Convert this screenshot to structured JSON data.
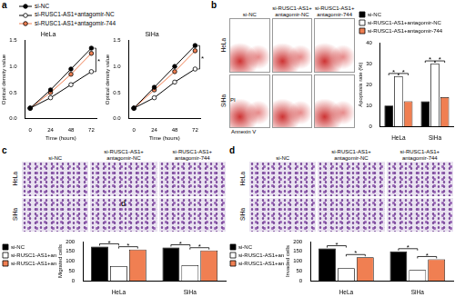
{
  "chart_data": [
    {
      "type": "line",
      "title": "HeLa",
      "x_label": "Time (hours)",
      "y_label": "Optical density value",
      "x": [
        0,
        24,
        48,
        72
      ],
      "xlim": [
        -6,
        78
      ],
      "xticks": [
        0,
        24,
        48,
        72
      ],
      "ylim": [
        0,
        1.5
      ],
      "yticks": [
        {
          "value": 0,
          "label": "0.0"
        },
        0.5,
        {
          "value": 1,
          "label": "1.0"
        },
        1.5
      ],
      "grid": false,
      "legend": "top",
      "annotations": [
        "*"
      ],
      "series": [
        {
          "name": "si-NC",
          "color": "#000000",
          "marker": "circle",
          "line_style": "solid",
          "values": [
            0.2,
            0.55,
            0.95,
            1.35
          ]
        },
        {
          "name": "si-RUSC1-AS1+antagomir-NC",
          "color": "#ffffff",
          "marker": "circle",
          "line_style": "solid",
          "values": [
            0.2,
            0.4,
            0.65,
            0.9
          ]
        },
        {
          "name": "si-RUSC1-AS1+antagomir-744",
          "color": "#f07f52",
          "marker": "circle",
          "line_style": "solid",
          "values": [
            0.2,
            0.5,
            0.85,
            1.25
          ]
        }
      ]
    },
    {
      "type": "line",
      "title": "SiHa",
      "x_label": "Time (hours)",
      "y_label": "Optical density value",
      "x": [
        0,
        24,
        48,
        72
      ],
      "xlim": [
        -6,
        78
      ],
      "xticks": [
        0,
        24,
        48,
        72
      ],
      "ylim": [
        0,
        1.5
      ],
      "yticks": [
        {
          "value": 0,
          "label": "0.0"
        },
        0.5,
        {
          "value": 1,
          "label": "1.0"
        },
        1.5
      ],
      "grid": false,
      "annotations": [
        "*"
      ],
      "series": [
        {
          "name": "si-NC",
          "color": "#000000",
          "marker": "circle",
          "line_style": "solid",
          "values": [
            0.2,
            0.6,
            1.0,
            1.4
          ]
        },
        {
          "name": "si-RUSC1-AS1+antagomir-NC",
          "color": "#ffffff",
          "marker": "circle",
          "line_style": "solid",
          "values": [
            0.2,
            0.4,
            0.7,
            0.95
          ]
        },
        {
          "name": "si-RUSC1-AS1+antagomir-744",
          "color": "#f07f52",
          "marker": "circle",
          "line_style": "solid",
          "values": [
            0.2,
            0.55,
            0.9,
            1.3
          ]
        }
      ]
    },
    {
      "type": "bar",
      "y_label": "Apoptosis rate (%)",
      "categories": [
        "HeLa",
        "SiHa"
      ],
      "ylim": [
        0,
        40
      ],
      "yticks": [
        0,
        10,
        20,
        30,
        40
      ],
      "grid": false,
      "legend": "top",
      "annotations": [
        "*",
        "*",
        "*",
        "*"
      ],
      "series": [
        {
          "name": "si-NC",
          "color": "#000000",
          "values": [
            10,
            12
          ]
        },
        {
          "name": "si-RUSC1-AS1+antagomir-NC",
          "color": "#ffffff",
          "values": [
            24,
            30
          ]
        },
        {
          "name": "si-RUSC1-AS1+antagomir-744",
          "color": "#f07f52",
          "values": [
            12,
            14
          ]
        }
      ]
    },
    {
      "type": "bar",
      "y_label": "Migrated cells",
      "categories": [
        "HeLa",
        "SiHa"
      ],
      "ylim": [
        0,
        200
      ],
      "yticks": [
        0,
        50,
        100,
        150,
        200
      ],
      "grid": false,
      "legend": "left",
      "annotations": [
        "*",
        "*",
        "*",
        "*"
      ],
      "series": [
        {
          "name": "si-NC",
          "color": "#000000",
          "values": [
            175,
            170
          ]
        },
        {
          "name": "si-RUSC1-AS1+antagomir-NC",
          "color": "#ffffff",
          "values": [
            75,
            80
          ]
        },
        {
          "name": "si-RUSC1-AS1+antagomir-744",
          "color": "#f07f52",
          "values": [
            160,
            155
          ]
        }
      ]
    },
    {
      "type": "bar",
      "y_label": "Invaded cells",
      "categories": [
        "HeLa",
        "SiHa"
      ],
      "ylim": [
        0,
        200
      ],
      "yticks": [
        0,
        50,
        100,
        150,
        200
      ],
      "grid": false,
      "legend": "left",
      "annotations": [
        "*",
        "*",
        "*",
        "*"
      ],
      "series": [
        {
          "name": "si-NC",
          "color": "#000000",
          "values": [
            165,
            150
          ]
        },
        {
          "name": "si-RUSC1-AS1+antagomir-NC",
          "color": "#ffffff",
          "values": [
            65,
            55
          ]
        },
        {
          "name": "si-RUSC1-AS1+antagomir-744",
          "color": "#f07f52",
          "values": [
            120,
            110
          ]
        }
      ]
    }
  ],
  "panels": [
    {
      "label": "a"
    },
    {
      "label": "b",
      "image_grid": {
        "columns": [
          "si-NC",
          "si-RUSC1-AS1+ antagomir-NC",
          "si-RUSC1-AS1+ antagomir-744"
        ],
        "rows": [
          "HeLa",
          "SiHa"
        ],
        "x_label": "Annexin V",
        "y_label": "PI"
      }
    },
    {
      "label": "c",
      "image_grid": {
        "columns": [
          "si-NC",
          "si-RUSC1-AS1+ antagomir-NC",
          "si-RUSC1-AS1+ antagomir-744"
        ],
        "rows": [
          "HeLa",
          "SiHa"
        ],
        "overlay_label": "d"
      }
    },
    {
      "label": "d",
      "image_grid": {
        "columns": [
          "si-NC",
          "si-RUSC1-AS1+ antagomir-NC",
          "si-RUSC1-AS1+ antagomir-744"
        ],
        "rows": [
          "HeLa",
          "SiHa"
        ]
      }
    }
  ]
}
